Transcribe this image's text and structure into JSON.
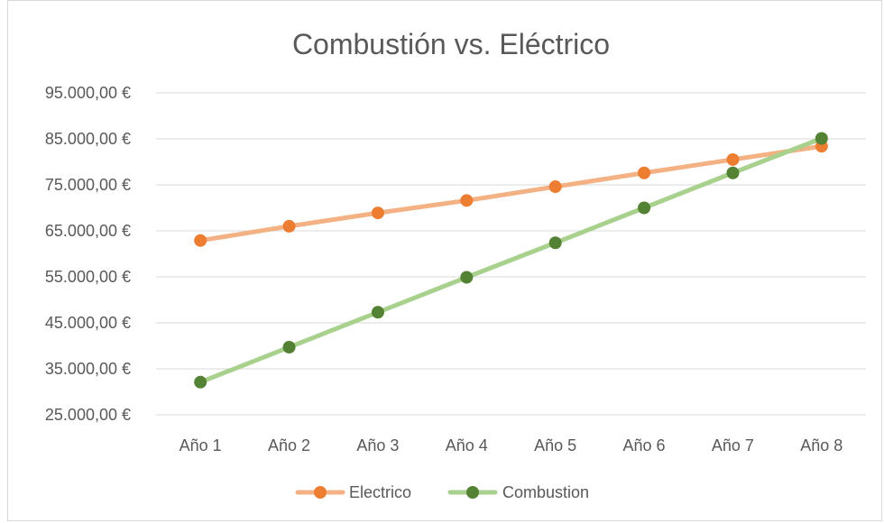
{
  "chart_data": {
    "type": "line",
    "title": "Combustión vs. Eléctrico",
    "categories": [
      "Año 1",
      "Año 2",
      "Año 3",
      "Año 4",
      "Año 5",
      "Año 6",
      "Año 7",
      "Año 8"
    ],
    "series": [
      {
        "name": "Electrico",
        "color": "#f4b183",
        "marker_color": "#ed7d31",
        "values": [
          62900,
          66000,
          68900,
          71600,
          74600,
          77600,
          80500,
          83400
        ]
      },
      {
        "name": "Combustion",
        "color": "#a9d18e",
        "marker_color": "#548235",
        "values": [
          32100,
          39700,
          47300,
          54900,
          62400,
          70000,
          77600,
          85100
        ]
      }
    ],
    "yticks": [
      25000,
      35000,
      45000,
      55000,
      65000,
      75000,
      85000,
      95000
    ],
    "ytick_labels": [
      "25.000,00 €",
      "35.000,00 €",
      "45.000,00 €",
      "55.000,00 €",
      "65.000,00 €",
      "75.000,00 €",
      "85.000,00 €",
      "95.000,00 €"
    ],
    "ylim": [
      25000,
      95000
    ],
    "xlabel": "",
    "ylabel": "",
    "grid": true,
    "legend_position": "bottom",
    "gridline_color": "#d9d9d9"
  }
}
